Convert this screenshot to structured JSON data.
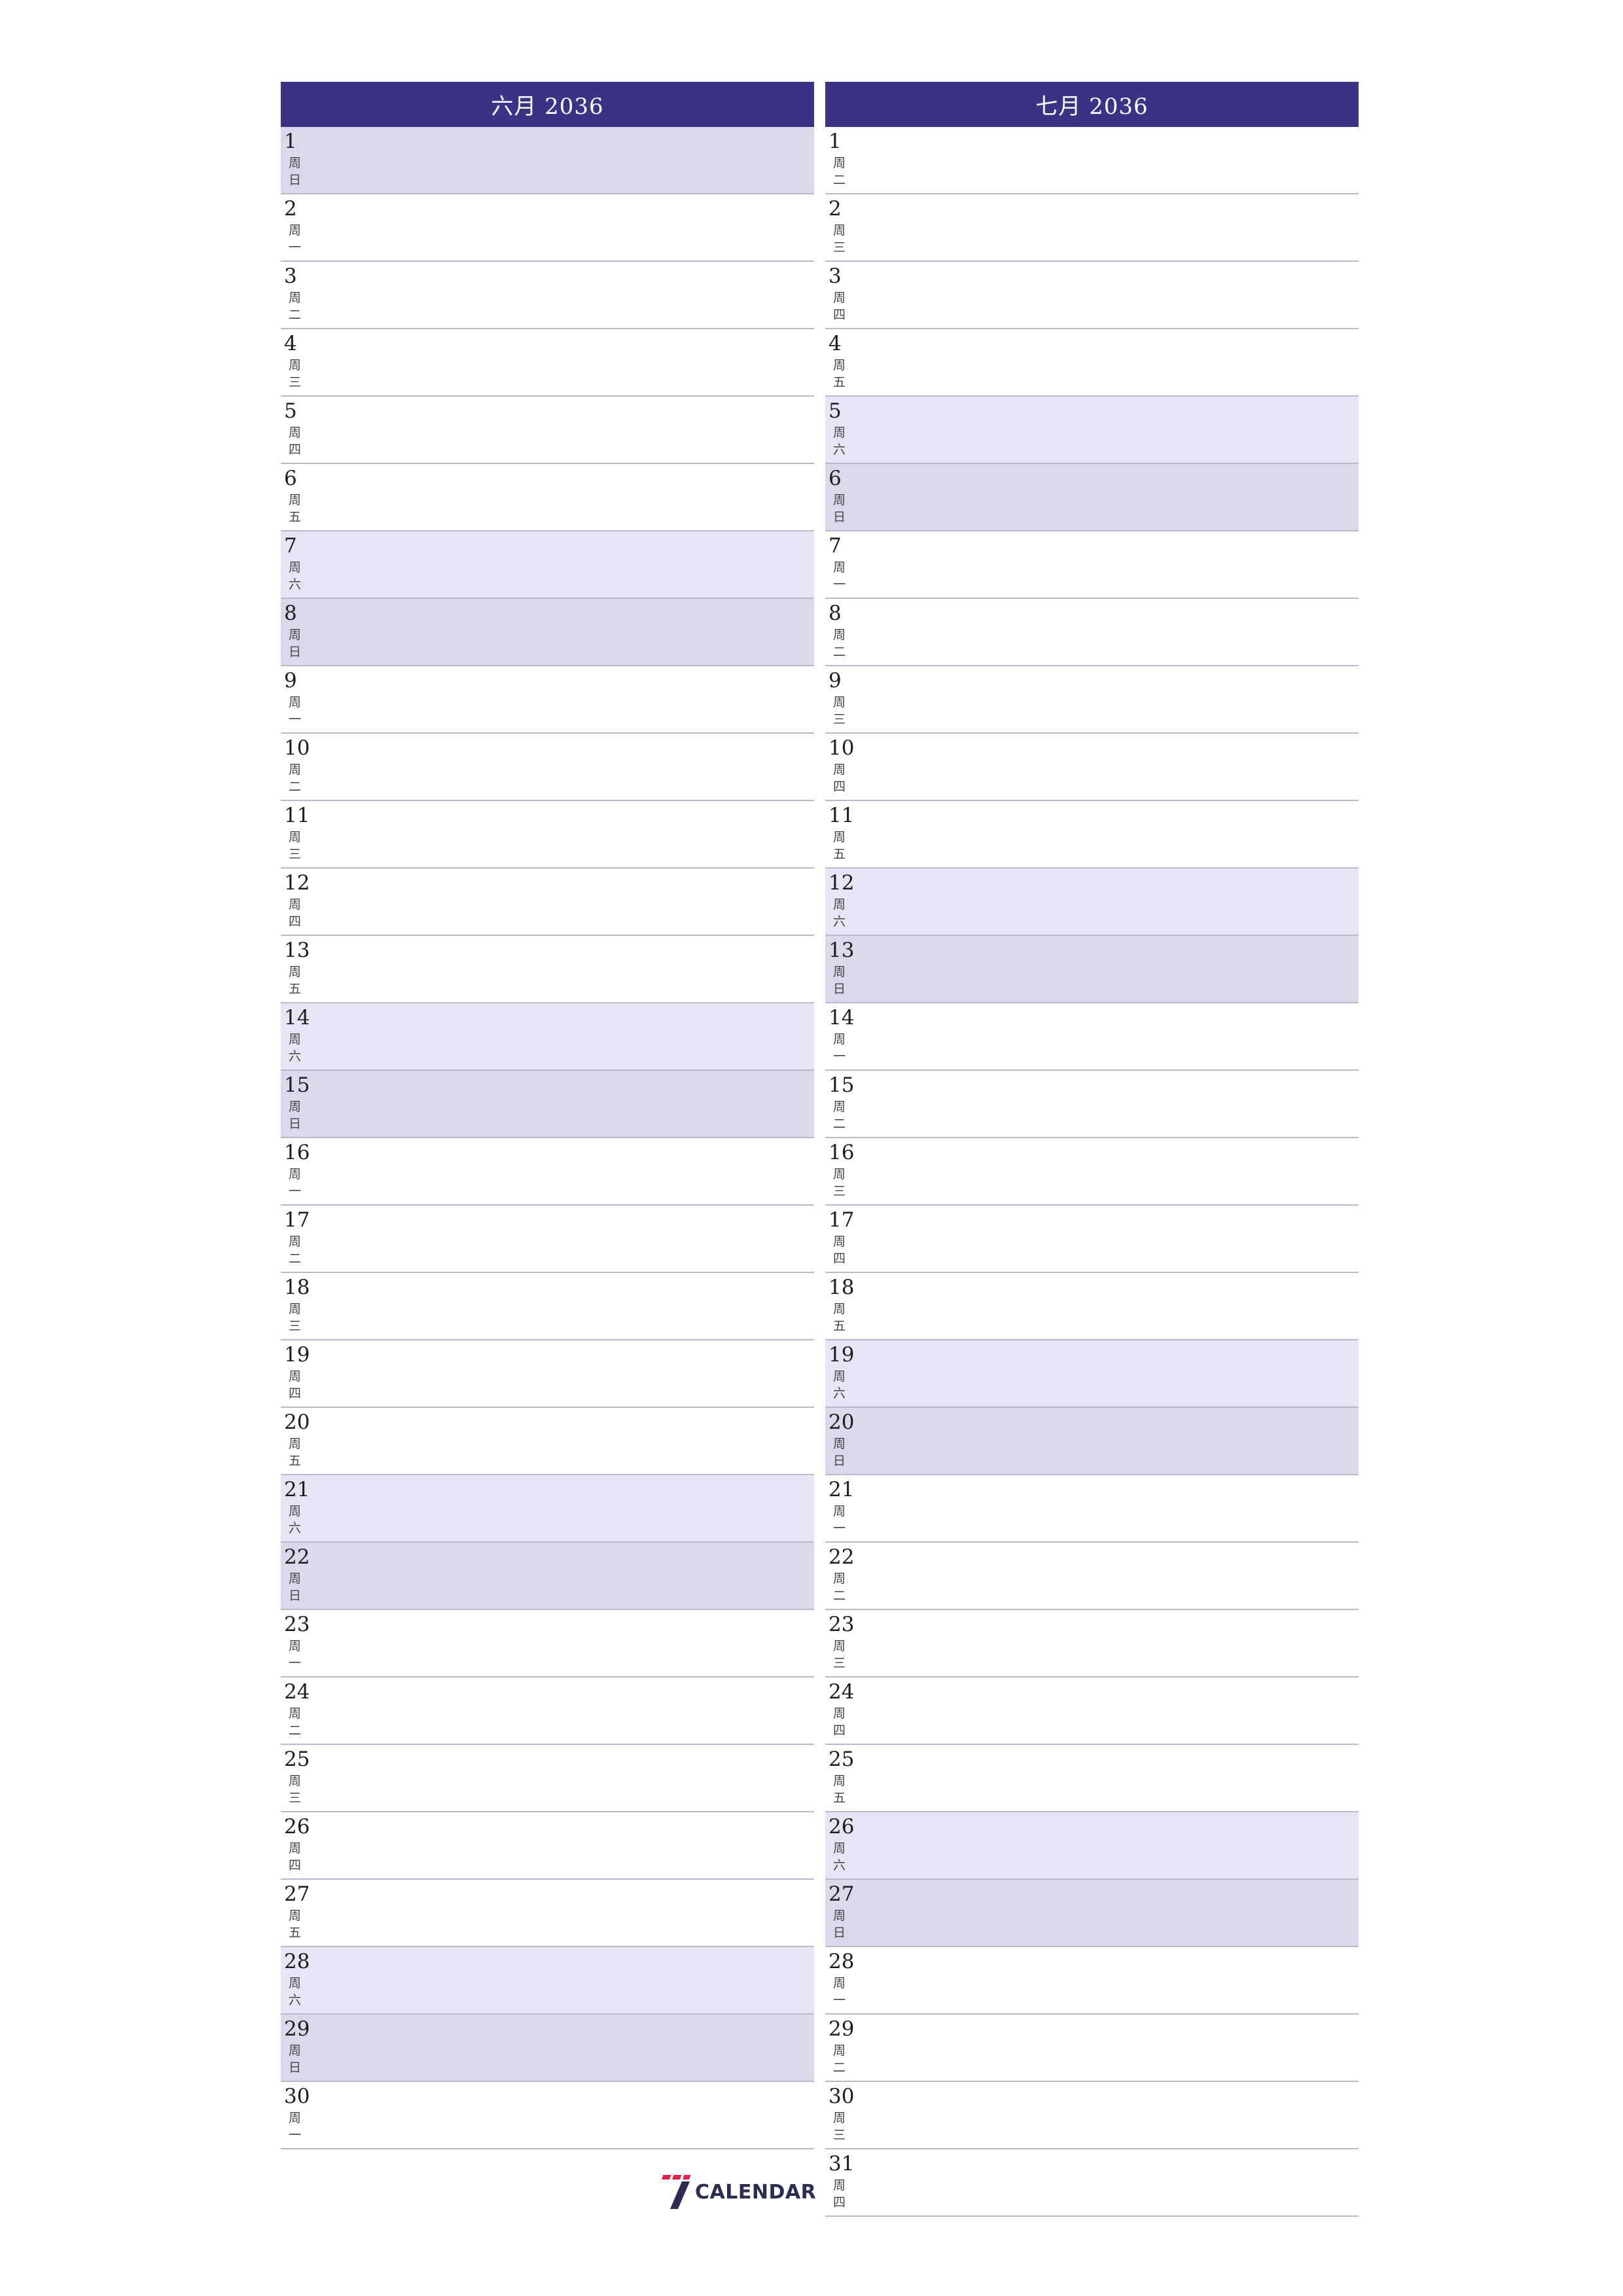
{
  "months": [
    {
      "id": "june",
      "title": "六月 2036",
      "days": [
        {
          "num": "1",
          "wd": "周日",
          "type": "sun"
        },
        {
          "num": "2",
          "wd": "周一",
          "type": ""
        },
        {
          "num": "3",
          "wd": "周二",
          "type": ""
        },
        {
          "num": "4",
          "wd": "周三",
          "type": ""
        },
        {
          "num": "5",
          "wd": "周四",
          "type": ""
        },
        {
          "num": "6",
          "wd": "周五",
          "type": ""
        },
        {
          "num": "7",
          "wd": "周六",
          "type": "sat"
        },
        {
          "num": "8",
          "wd": "周日",
          "type": "sun"
        },
        {
          "num": "9",
          "wd": "周一",
          "type": ""
        },
        {
          "num": "10",
          "wd": "周二",
          "type": ""
        },
        {
          "num": "11",
          "wd": "周三",
          "type": ""
        },
        {
          "num": "12",
          "wd": "周四",
          "type": ""
        },
        {
          "num": "13",
          "wd": "周五",
          "type": ""
        },
        {
          "num": "14",
          "wd": "周六",
          "type": "sat"
        },
        {
          "num": "15",
          "wd": "周日",
          "type": "sun"
        },
        {
          "num": "16",
          "wd": "周一",
          "type": ""
        },
        {
          "num": "17",
          "wd": "周二",
          "type": ""
        },
        {
          "num": "18",
          "wd": "周三",
          "type": ""
        },
        {
          "num": "19",
          "wd": "周四",
          "type": ""
        },
        {
          "num": "20",
          "wd": "周五",
          "type": ""
        },
        {
          "num": "21",
          "wd": "周六",
          "type": "sat"
        },
        {
          "num": "22",
          "wd": "周日",
          "type": "sun"
        },
        {
          "num": "23",
          "wd": "周一",
          "type": ""
        },
        {
          "num": "24",
          "wd": "周二",
          "type": ""
        },
        {
          "num": "25",
          "wd": "周三",
          "type": ""
        },
        {
          "num": "26",
          "wd": "周四",
          "type": ""
        },
        {
          "num": "27",
          "wd": "周五",
          "type": ""
        },
        {
          "num": "28",
          "wd": "周六",
          "type": "sat"
        },
        {
          "num": "29",
          "wd": "周日",
          "type": "sun"
        },
        {
          "num": "30",
          "wd": "周一",
          "type": ""
        }
      ]
    },
    {
      "id": "july",
      "title": "七月 2036",
      "days": [
        {
          "num": "1",
          "wd": "周二",
          "type": ""
        },
        {
          "num": "2",
          "wd": "周三",
          "type": ""
        },
        {
          "num": "3",
          "wd": "周四",
          "type": ""
        },
        {
          "num": "4",
          "wd": "周五",
          "type": ""
        },
        {
          "num": "5",
          "wd": "周六",
          "type": "sat"
        },
        {
          "num": "6",
          "wd": "周日",
          "type": "sun"
        },
        {
          "num": "7",
          "wd": "周一",
          "type": ""
        },
        {
          "num": "8",
          "wd": "周二",
          "type": ""
        },
        {
          "num": "9",
          "wd": "周三",
          "type": ""
        },
        {
          "num": "10",
          "wd": "周四",
          "type": ""
        },
        {
          "num": "11",
          "wd": "周五",
          "type": ""
        },
        {
          "num": "12",
          "wd": "周六",
          "type": "sat"
        },
        {
          "num": "13",
          "wd": "周日",
          "type": "sun"
        },
        {
          "num": "14",
          "wd": "周一",
          "type": ""
        },
        {
          "num": "15",
          "wd": "周二",
          "type": ""
        },
        {
          "num": "16",
          "wd": "周三",
          "type": ""
        },
        {
          "num": "17",
          "wd": "周四",
          "type": ""
        },
        {
          "num": "18",
          "wd": "周五",
          "type": ""
        },
        {
          "num": "19",
          "wd": "周六",
          "type": "sat"
        },
        {
          "num": "20",
          "wd": "周日",
          "type": "sun"
        },
        {
          "num": "21",
          "wd": "周一",
          "type": ""
        },
        {
          "num": "22",
          "wd": "周二",
          "type": ""
        },
        {
          "num": "23",
          "wd": "周三",
          "type": ""
        },
        {
          "num": "24",
          "wd": "周四",
          "type": ""
        },
        {
          "num": "25",
          "wd": "周五",
          "type": ""
        },
        {
          "num": "26",
          "wd": "周六",
          "type": "sat"
        },
        {
          "num": "27",
          "wd": "周日",
          "type": "sun"
        },
        {
          "num": "28",
          "wd": "周一",
          "type": ""
        },
        {
          "num": "29",
          "wd": "周二",
          "type": ""
        },
        {
          "num": "30",
          "wd": "周三",
          "type": ""
        },
        {
          "num": "31",
          "wd": "周四",
          "type": ""
        }
      ]
    }
  ],
  "logo": {
    "text": "CALENDAR",
    "mark": "7",
    "icon": "seven-calendar-logo-icon"
  },
  "colors": {
    "header": "#3b3486",
    "saturday": "#e5e5f6",
    "sunday": "#dcd8ec",
    "logo_red": "#e3204a",
    "logo_navy": "#2c2b52"
  }
}
